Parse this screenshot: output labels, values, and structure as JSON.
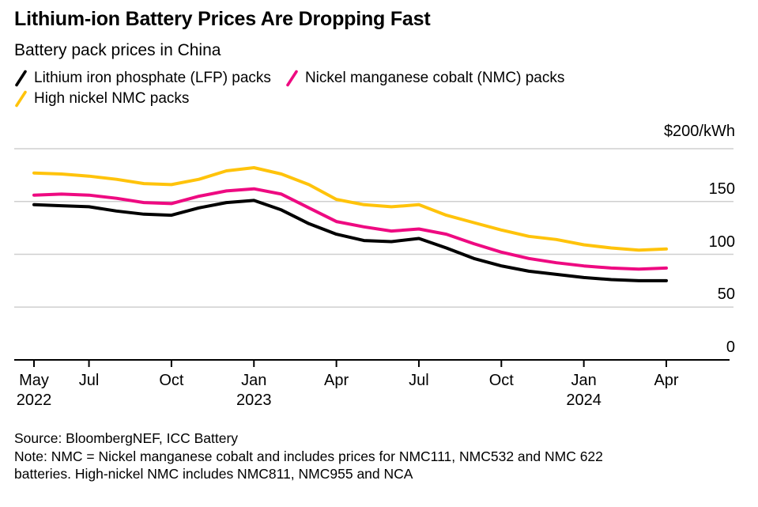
{
  "header": {
    "title": "Lithium-ion Battery Prices Are Dropping Fast",
    "subtitle": "Battery pack prices in China"
  },
  "chart_data": {
    "type": "line",
    "title": "Lithium-ion Battery Prices Are Dropping Fast",
    "subtitle": "Battery pack prices in China",
    "unit_label": "$200/kWh",
    "xlabel": "",
    "ylabel": "$/kWh",
    "ylim": [
      0,
      200
    ],
    "grid": true,
    "legend_position": "top",
    "x": [
      "May 2022",
      "Jun 2022",
      "Jul 2022",
      "Aug 2022",
      "Sep 2022",
      "Oct 2022",
      "Nov 2022",
      "Dec 2022",
      "Jan 2023",
      "Feb 2023",
      "Mar 2023",
      "Apr 2023",
      "May 2023",
      "Jun 2023",
      "Jul 2023",
      "Aug 2023",
      "Sep 2023",
      "Oct 2023",
      "Nov 2023",
      "Dec 2023",
      "Jan 2024",
      "Feb 2024",
      "Mar 2024",
      "Apr 2024"
    ],
    "series": [
      {
        "key": "lfp-packs",
        "name": "Lithium iron phosphate (LFP) packs",
        "color": "#000000",
        "values": [
          147,
          146,
          145,
          141,
          138,
          137,
          144,
          149,
          151,
          142,
          129,
          119,
          113,
          112,
          115,
          106,
          96,
          89,
          84,
          81,
          78,
          76,
          75,
          75
        ]
      },
      {
        "key": "nmc-packs",
        "name": "Nickel manganese cobalt (NMC) packs",
        "color": "#EE0A81",
        "values": [
          156,
          157,
          156,
          153,
          149,
          148,
          155,
          160,
          162,
          157,
          144,
          131,
          126,
          122,
          124,
          119,
          110,
          102,
          96,
          92,
          89,
          87,
          86,
          87
        ]
      },
      {
        "key": "high-nickel-nmc-packs",
        "name": "High nickel NMC packs",
        "color": "#FFC30B",
        "values": [
          177,
          176,
          174,
          171,
          167,
          166,
          171,
          179,
          182,
          176,
          166,
          152,
          147,
          145,
          147,
          137,
          130,
          123,
          117,
          114,
          109,
          106,
          104,
          105
        ]
      }
    ],
    "y_gridlines": [
      50,
      100,
      150,
      200
    ],
    "y_ticks": [
      {
        "value": 0,
        "label": "0"
      },
      {
        "value": 50,
        "label": "50"
      },
      {
        "value": 100,
        "label": "100"
      },
      {
        "value": 150,
        "label": "150"
      }
    ],
    "x_ticks": [
      {
        "month_index": 0,
        "month": "May",
        "year": "2022"
      },
      {
        "month_index": 2,
        "month": "Jul"
      },
      {
        "month_index": 5,
        "month": "Oct"
      },
      {
        "month_index": 8,
        "month": "Jan",
        "year": "2023"
      },
      {
        "month_index": 11,
        "month": "Apr"
      },
      {
        "month_index": 14,
        "month": "Jul"
      },
      {
        "month_index": 17,
        "month": "Oct"
      },
      {
        "month_index": 20,
        "month": "Jan",
        "year": "2024"
      },
      {
        "month_index": 23,
        "month": "Apr"
      }
    ]
  },
  "footer": {
    "source": "Source: BloombergNEF, ICC Battery",
    "note": "Note: NMC = Nickel manganese cobalt and includes prices for NMC111, NMC532 and NMC 622\nbatteries. High-nickel NMC includes NMC811, NMC955 and NCA"
  },
  "colors": {
    "background": "#FFFFFF",
    "text": "#000000",
    "grid": "#CFCFCF",
    "axis": "#000000"
  }
}
